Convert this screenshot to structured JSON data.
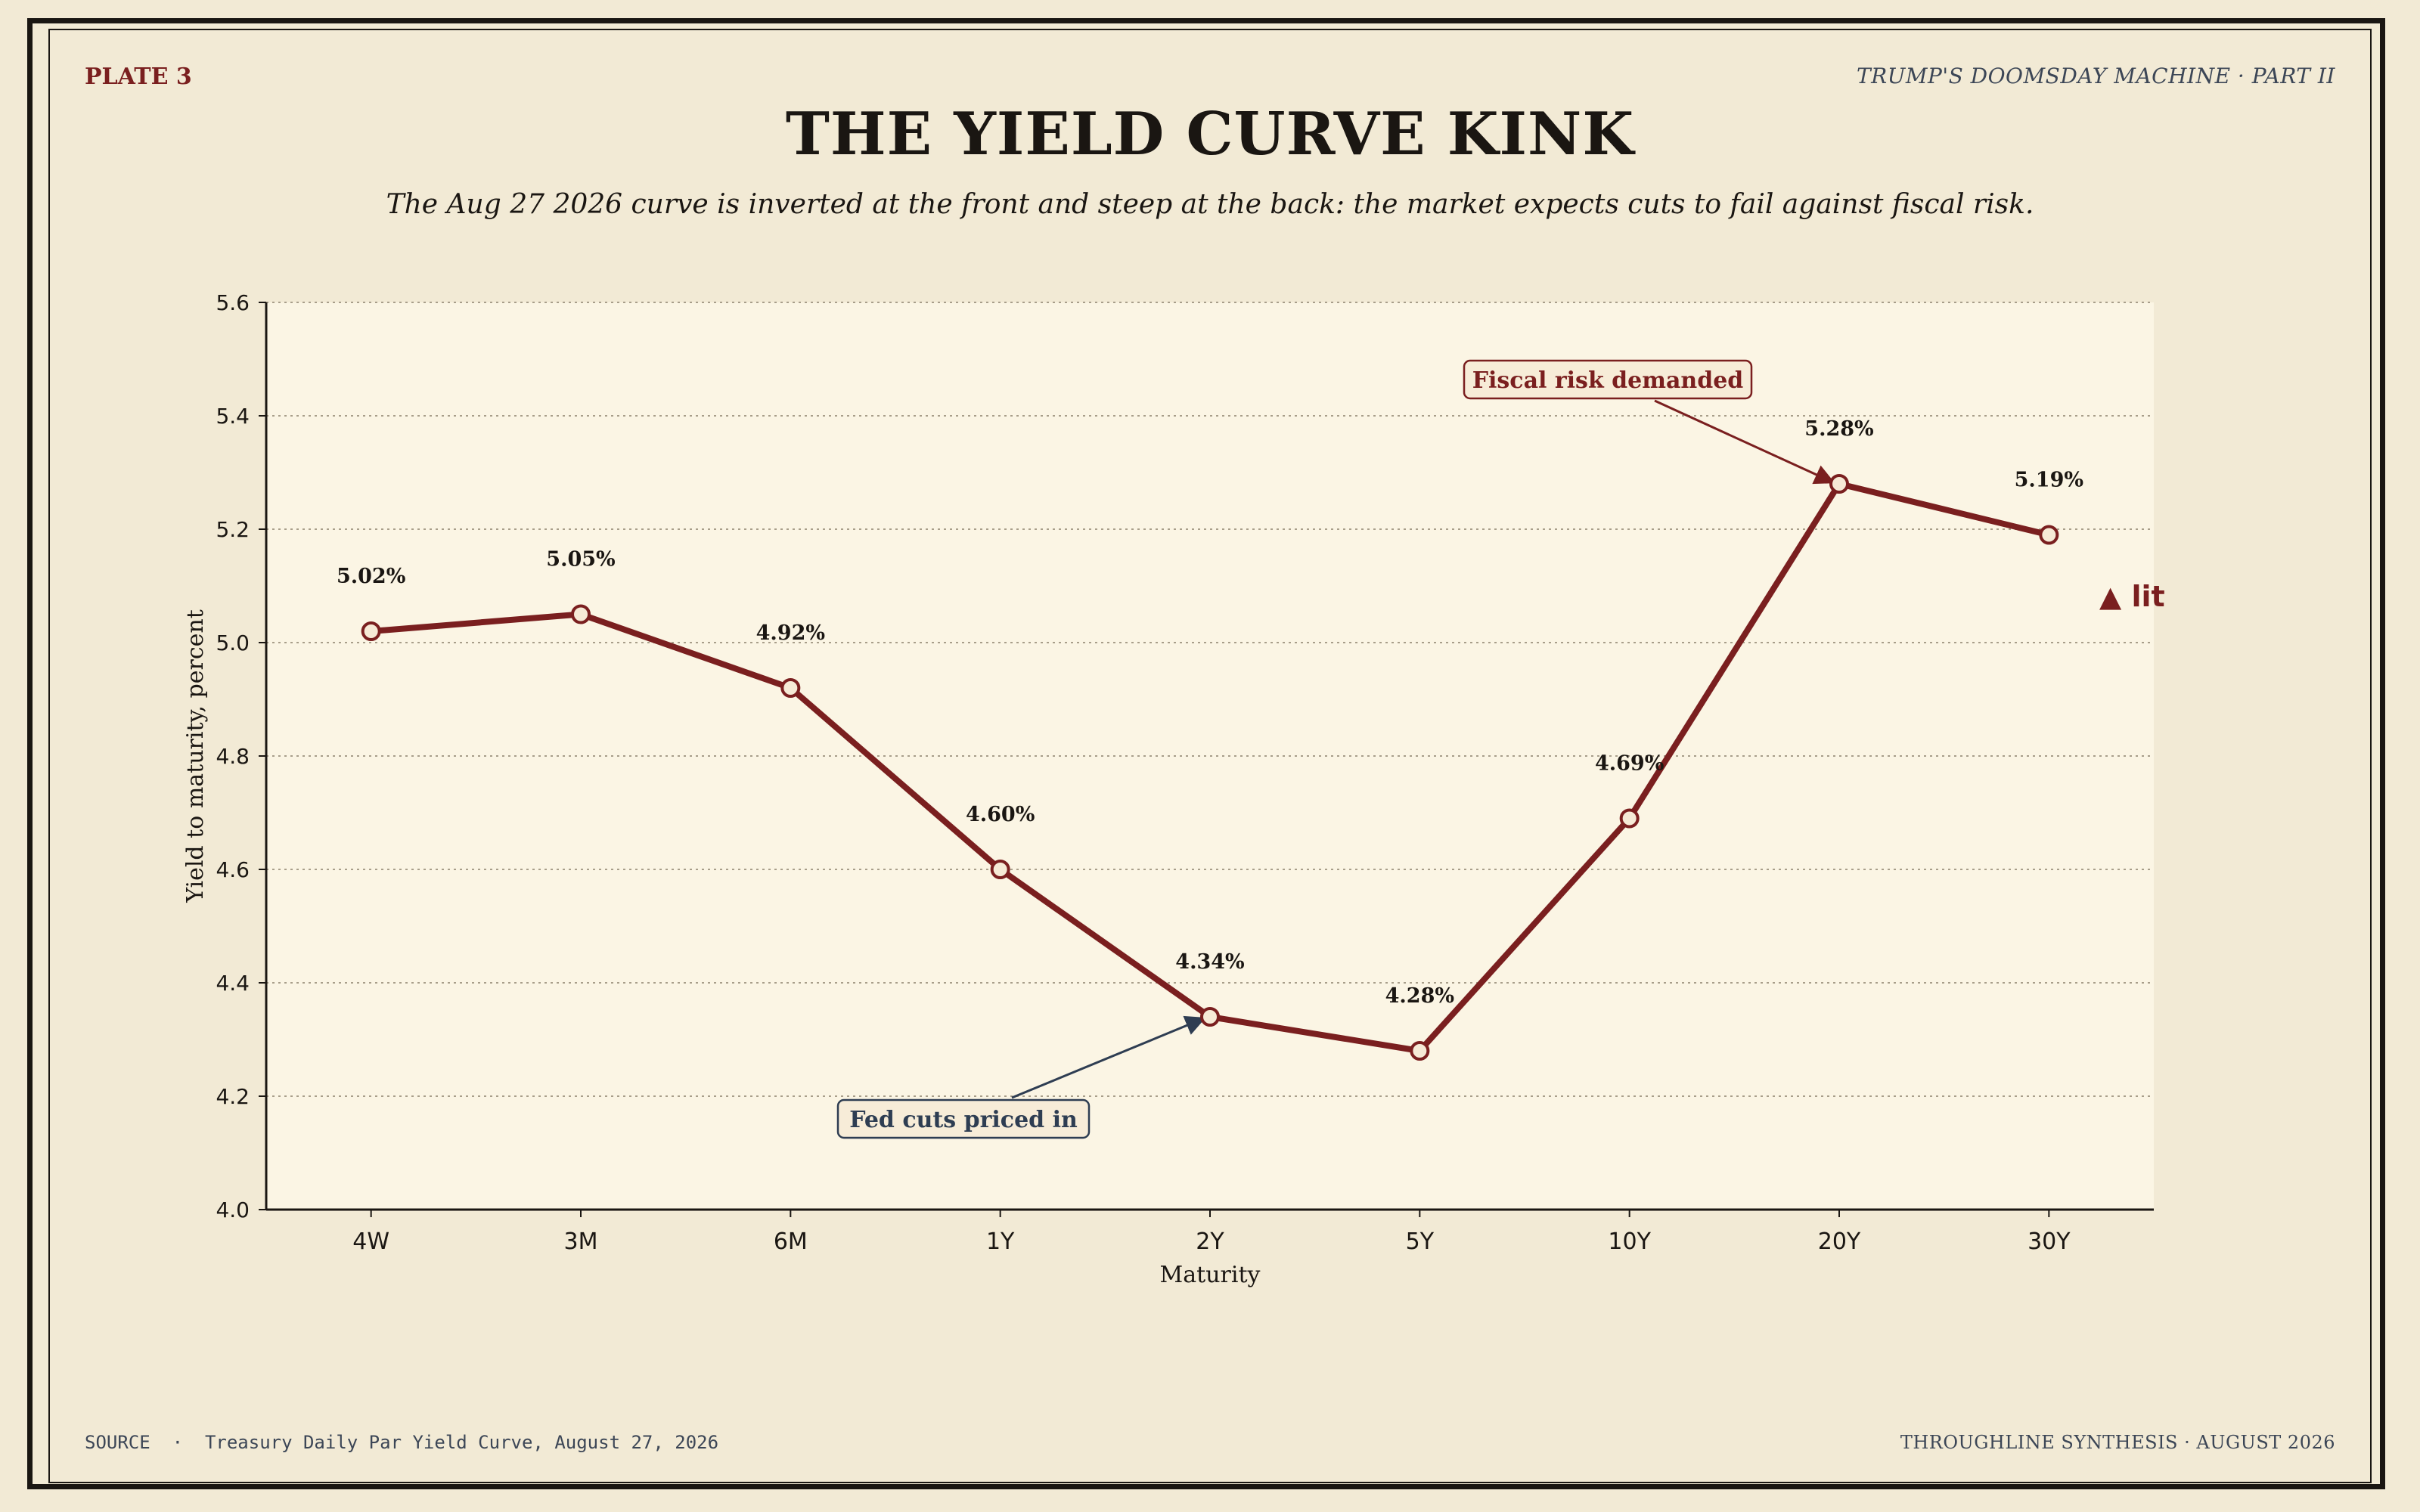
{
  "header": {
    "plate": "PLATE 3",
    "series": "TRUMP'S DOOMSDAY MACHINE  ·  PART II"
  },
  "title": "THE YIELD CURVE KINK",
  "subtitle": "The Aug 27 2026 curve is inverted at the front and steep at the back: the market expects cuts to fail against fiscal risk.",
  "footer": {
    "source": "SOURCE  ·  Treasury Daily Par Yield Curve, August 27, 2026",
    "credit": "THROUGHLINE SYNTHESIS  ·  AUGUST 2026"
  },
  "colors": {
    "line": "#7a1f1f",
    "accent_blue": "#2e3d52",
    "plot_bg": "#fbf5e4",
    "page_bg": "#f2ead5"
  },
  "chart_data": {
    "type": "line",
    "categories": [
      "4W",
      "3M",
      "6M",
      "1Y",
      "2Y",
      "5Y",
      "10Y",
      "20Y",
      "30Y"
    ],
    "values": [
      5.02,
      5.05,
      4.92,
      4.6,
      4.34,
      4.28,
      4.69,
      5.28,
      5.19
    ],
    "data_labels": [
      "5.02%",
      "5.05%",
      "4.92%",
      "4.60%",
      "4.34%",
      "4.28%",
      "4.69%",
      "5.28%",
      "5.19%"
    ],
    "xlabel": "Maturity",
    "ylabel": "Yield to maturity, percent",
    "ylim": [
      4.0,
      5.6
    ],
    "yticks": [
      "4.0",
      "4.2",
      "4.4",
      "4.6",
      "4.8",
      "5.0",
      "5.2",
      "5.4",
      "5.6"
    ],
    "grid": "horizontal dotted",
    "annotations": [
      {
        "text": "Fiscal risk demanded",
        "target": "20Y",
        "style": "red"
      },
      {
        "text": "Fed cuts priced in",
        "target": "2Y",
        "style": "blue"
      },
      {
        "text": "▲ lit",
        "target": "30Y",
        "style": "red"
      }
    ]
  }
}
